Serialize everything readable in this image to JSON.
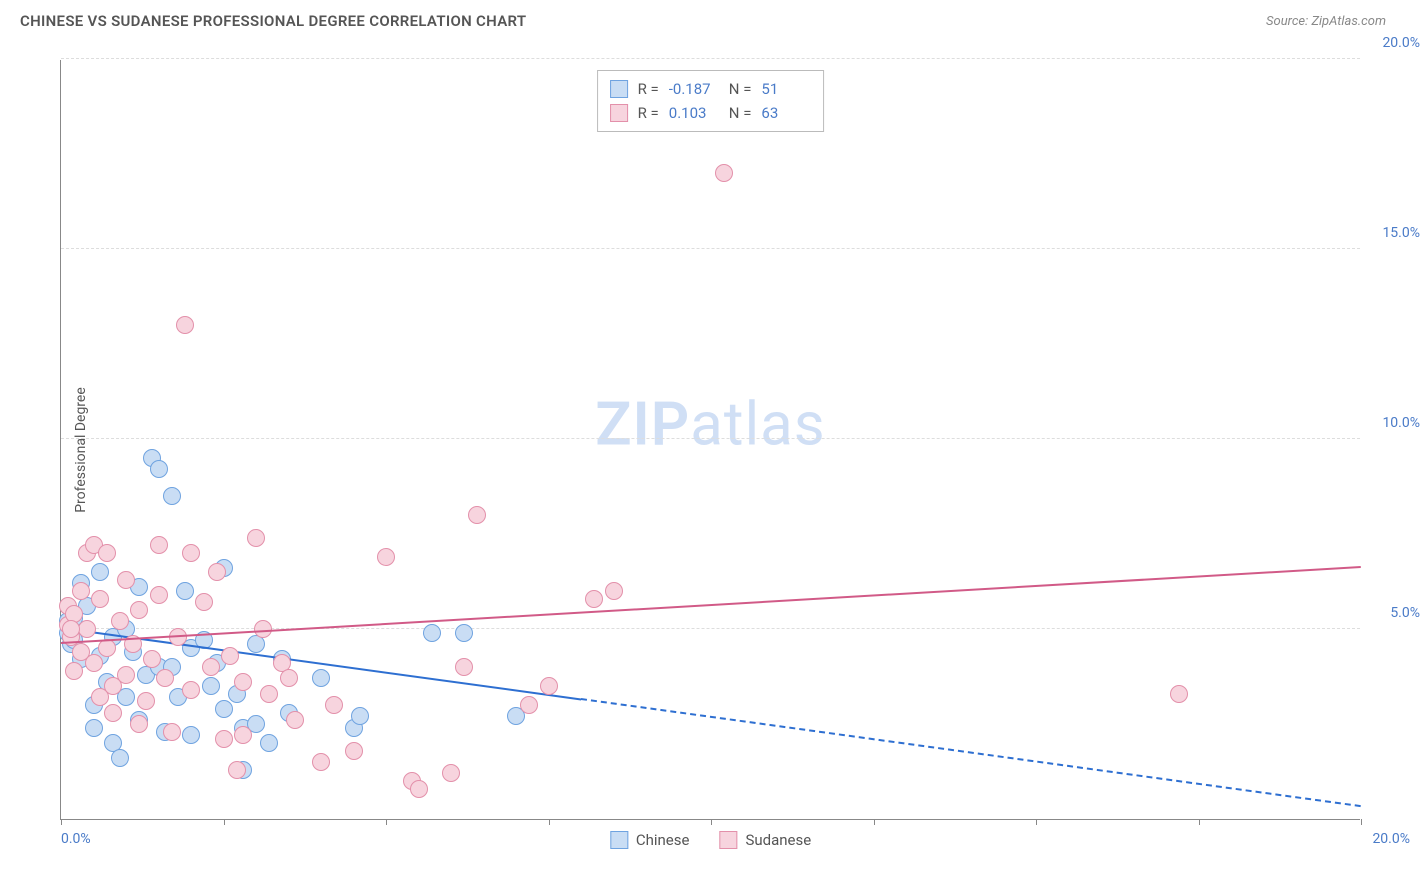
{
  "header": {
    "title": "CHINESE VS SUDANESE PROFESSIONAL DEGREE CORRELATION CHART",
    "source_prefix": "Source: ",
    "source_name": "ZipAtlas.com"
  },
  "y_axis_label": "Professional Degree",
  "watermark": {
    "bold": "ZIP",
    "rest": "atlas"
  },
  "chart": {
    "xlim": [
      0,
      20
    ],
    "ylim": [
      0,
      20
    ],
    "y_ticks": [
      5.0,
      10.0,
      15.0,
      20.0
    ],
    "y_tick_labels": [
      "5.0%",
      "10.0%",
      "15.0%",
      "20.0%"
    ],
    "x_ticks": [
      0,
      2.5,
      5,
      7.5,
      10,
      12.5,
      15,
      17.5,
      20
    ],
    "x_origin_label": "0.0%",
    "x_end_label": "20.0%",
    "grid_color": "#dddddd",
    "point_radius": 9,
    "series": [
      {
        "name": "Chinese",
        "fill": "#c9ddf4",
        "stroke": "#6fa3e0",
        "r_value": "-0.187",
        "n_value": "51",
        "trend": {
          "color": "#2e6fd1",
          "y_at_x0": 5.0,
          "y_at_x20": 0.3,
          "solid_until_x": 8.0
        },
        "points": [
          [
            0.1,
            4.9
          ],
          [
            0.1,
            5.2
          ],
          [
            0.15,
            4.6
          ],
          [
            0.2,
            4.7
          ],
          [
            0.2,
            5.3
          ],
          [
            0.3,
            6.2
          ],
          [
            0.3,
            4.2
          ],
          [
            0.4,
            5.6
          ],
          [
            0.5,
            3.0
          ],
          [
            0.5,
            2.4
          ],
          [
            0.6,
            4.3
          ],
          [
            0.6,
            6.5
          ],
          [
            0.7,
            3.6
          ],
          [
            0.8,
            4.8
          ],
          [
            0.8,
            2.0
          ],
          [
            0.9,
            1.6
          ],
          [
            1.0,
            5.0
          ],
          [
            1.0,
            3.2
          ],
          [
            1.1,
            4.4
          ],
          [
            1.2,
            6.1
          ],
          [
            1.2,
            2.6
          ],
          [
            1.3,
            3.8
          ],
          [
            1.4,
            9.5
          ],
          [
            1.5,
            9.2
          ],
          [
            1.5,
            4.0
          ],
          [
            1.6,
            2.3
          ],
          [
            1.7,
            8.5
          ],
          [
            1.7,
            4.0
          ],
          [
            1.8,
            3.2
          ],
          [
            1.9,
            6.0
          ],
          [
            2.0,
            4.5
          ],
          [
            2.0,
            2.2
          ],
          [
            2.2,
            4.7
          ],
          [
            2.3,
            3.5
          ],
          [
            2.4,
            4.1
          ],
          [
            2.5,
            2.9
          ],
          [
            2.5,
            6.6
          ],
          [
            2.7,
            3.3
          ],
          [
            2.8,
            2.4
          ],
          [
            2.8,
            1.3
          ],
          [
            3.0,
            4.6
          ],
          [
            3.0,
            2.5
          ],
          [
            3.2,
            2.0
          ],
          [
            3.4,
            4.2
          ],
          [
            3.5,
            2.8
          ],
          [
            4.0,
            3.7
          ],
          [
            4.5,
            2.4
          ],
          [
            4.6,
            2.7
          ],
          [
            5.7,
            4.9
          ],
          [
            6.2,
            4.9
          ],
          [
            7.0,
            2.7
          ]
        ]
      },
      {
        "name": "Sudanese",
        "fill": "#f7d4de",
        "stroke": "#e390aa",
        "r_value": "0.103",
        "n_value": "63",
        "trend": {
          "color": "#d15a87",
          "y_at_x0": 4.6,
          "y_at_x20": 6.6,
          "solid_until_x": 20
        },
        "points": [
          [
            0.1,
            5.1
          ],
          [
            0.1,
            5.6
          ],
          [
            0.15,
            4.8
          ],
          [
            0.2,
            5.4
          ],
          [
            0.2,
            3.9
          ],
          [
            0.3,
            4.4
          ],
          [
            0.3,
            6.0
          ],
          [
            0.4,
            5.0
          ],
          [
            0.4,
            7.0
          ],
          [
            0.5,
            7.2
          ],
          [
            0.5,
            4.1
          ],
          [
            0.6,
            3.2
          ],
          [
            0.6,
            5.8
          ],
          [
            0.7,
            4.5
          ],
          [
            0.7,
            7.0
          ],
          [
            0.8,
            3.5
          ],
          [
            0.8,
            2.8
          ],
          [
            0.9,
            5.2
          ],
          [
            1.0,
            6.3
          ],
          [
            1.0,
            3.8
          ],
          [
            1.1,
            4.6
          ],
          [
            1.2,
            2.5
          ],
          [
            1.2,
            5.5
          ],
          [
            1.3,
            3.1
          ],
          [
            1.4,
            4.2
          ],
          [
            1.5,
            7.2
          ],
          [
            1.5,
            5.9
          ],
          [
            1.6,
            3.7
          ],
          [
            1.7,
            2.3
          ],
          [
            1.8,
            4.8
          ],
          [
            1.9,
            13.0
          ],
          [
            2.0,
            7.0
          ],
          [
            2.0,
            3.4
          ],
          [
            2.2,
            5.7
          ],
          [
            2.3,
            4.0
          ],
          [
            2.4,
            6.5
          ],
          [
            2.5,
            2.1
          ],
          [
            2.6,
            4.3
          ],
          [
            2.7,
            1.3
          ],
          [
            2.8,
            3.6
          ],
          [
            2.8,
            2.2
          ],
          [
            3.0,
            7.4
          ],
          [
            3.1,
            5.0
          ],
          [
            3.2,
            3.3
          ],
          [
            3.4,
            4.1
          ],
          [
            3.5,
            3.7
          ],
          [
            3.6,
            2.6
          ],
          [
            4.0,
            1.5
          ],
          [
            4.2,
            3.0
          ],
          [
            4.5,
            1.8
          ],
          [
            5.0,
            6.9
          ],
          [
            5.4,
            1.0
          ],
          [
            5.5,
            0.8
          ],
          [
            6.0,
            1.2
          ],
          [
            6.2,
            4.0
          ],
          [
            6.4,
            8.0
          ],
          [
            7.2,
            3.0
          ],
          [
            7.5,
            3.5
          ],
          [
            8.2,
            5.8
          ],
          [
            8.5,
            6.0
          ],
          [
            10.2,
            17.0
          ],
          [
            17.2,
            3.3
          ],
          [
            0.15,
            5.0
          ]
        ]
      }
    ],
    "legend_bottom": [
      "Chinese",
      "Sudanese"
    ]
  }
}
